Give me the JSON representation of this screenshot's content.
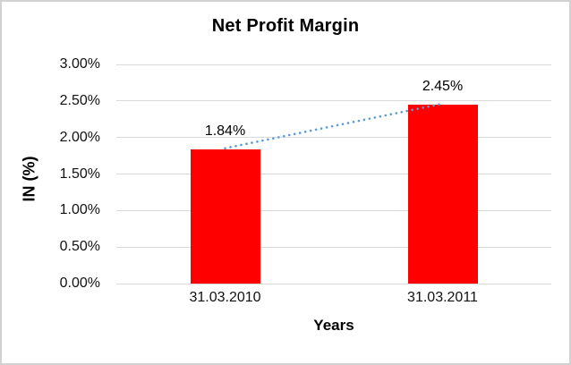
{
  "chart_data": {
    "type": "bar",
    "title": "Net Profit Margin",
    "xlabel": "Years",
    "ylabel": "IN (%)",
    "categories": [
      "31.03.2010",
      "31.03.2011"
    ],
    "values": [
      1.84,
      2.45
    ],
    "data_labels": [
      "1.84%",
      "2.45%"
    ],
    "ylim": [
      0,
      3.0
    ],
    "ytick_step": 0.5,
    "ytick_labels": [
      "0.00%",
      "0.50%",
      "1.00%",
      "1.50%",
      "2.00%",
      "2.50%",
      "3.00%"
    ],
    "grid": true,
    "legend": "none",
    "bar_color": "#FF0000",
    "gridline_color": "#D9D9D9",
    "trendline": {
      "type": "linear",
      "style": "dotted",
      "color": "#5B9BD5",
      "connects": "tops of the two bars"
    }
  }
}
